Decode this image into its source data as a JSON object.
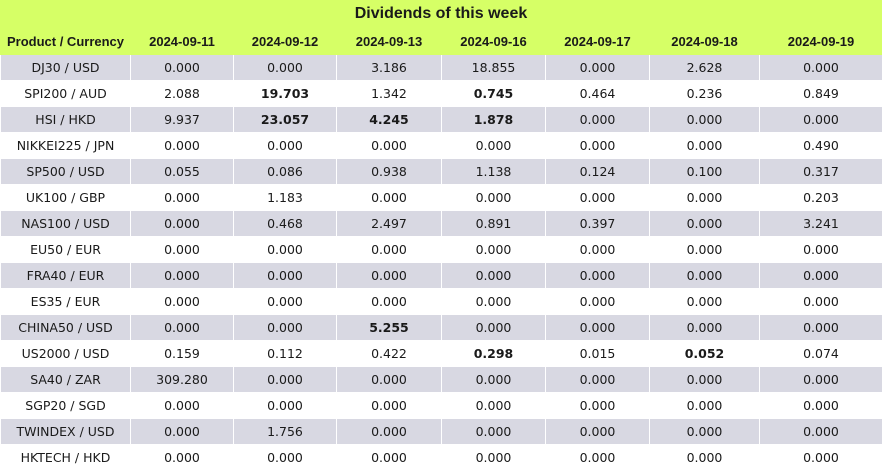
{
  "title": "Dividends of this week",
  "headers": [
    "Product / Currency",
    "2024-09-11",
    "2024-09-12",
    "2024-09-13",
    "2024-09-16",
    "2024-09-17",
    "2024-09-18",
    "2024-09-19"
  ],
  "rows": [
    {
      "product": "DJ30 / USD",
      "values": [
        "0.000",
        "0.000",
        "3.186",
        "18.855",
        "0.000",
        "2.628",
        "0.000"
      ],
      "bold": []
    },
    {
      "product": "SPI200 / AUD",
      "values": [
        "2.088",
        "19.703",
        "1.342",
        "0.745",
        "0.464",
        "0.236",
        "0.849"
      ],
      "bold": [
        1,
        3
      ]
    },
    {
      "product": "HSI / HKD",
      "values": [
        "9.937",
        "23.057",
        "4.245",
        "1.878",
        "0.000",
        "0.000",
        "0.000"
      ],
      "bold": [
        1,
        2,
        3
      ]
    },
    {
      "product": "NIKKEI225 / JPN",
      "values": [
        "0.000",
        "0.000",
        "0.000",
        "0.000",
        "0.000",
        "0.000",
        "0.490"
      ],
      "bold": []
    },
    {
      "product": "SP500 / USD",
      "values": [
        "0.055",
        "0.086",
        "0.938",
        "1.138",
        "0.124",
        "0.100",
        "0.317"
      ],
      "bold": []
    },
    {
      "product": "UK100 / GBP",
      "values": [
        "0.000",
        "1.183",
        "0.000",
        "0.000",
        "0.000",
        "0.000",
        "0.203"
      ],
      "bold": []
    },
    {
      "product": "NAS100 / USD",
      "values": [
        "0.000",
        "0.468",
        "2.497",
        "0.891",
        "0.397",
        "0.000",
        "3.241"
      ],
      "bold": []
    },
    {
      "product": "EU50 / EUR",
      "values": [
        "0.000",
        "0.000",
        "0.000",
        "0.000",
        "0.000",
        "0.000",
        "0.000"
      ],
      "bold": []
    },
    {
      "product": "FRA40 / EUR",
      "values": [
        "0.000",
        "0.000",
        "0.000",
        "0.000",
        "0.000",
        "0.000",
        "0.000"
      ],
      "bold": []
    },
    {
      "product": "ES35 / EUR",
      "values": [
        "0.000",
        "0.000",
        "0.000",
        "0.000",
        "0.000",
        "0.000",
        "0.000"
      ],
      "bold": []
    },
    {
      "product": "CHINA50 / USD",
      "values": [
        "0.000",
        "0.000",
        "5.255",
        "0.000",
        "0.000",
        "0.000",
        "0.000"
      ],
      "bold": [
        2
      ]
    },
    {
      "product": "US2000 / USD",
      "values": [
        "0.159",
        "0.112",
        "0.422",
        "0.298",
        "0.015",
        "0.052",
        "0.074"
      ],
      "bold": [
        3,
        5
      ]
    },
    {
      "product": "SA40 / ZAR",
      "values": [
        "309.280",
        "0.000",
        "0.000",
        "0.000",
        "0.000",
        "0.000",
        "0.000"
      ],
      "bold": []
    },
    {
      "product": "SGP20 / SGD",
      "values": [
        "0.000",
        "0.000",
        "0.000",
        "0.000",
        "0.000",
        "0.000",
        "0.000"
      ],
      "bold": []
    },
    {
      "product": "TWINDEX / USD",
      "values": [
        "0.000",
        "1.756",
        "0.000",
        "0.000",
        "0.000",
        "0.000",
        "0.000"
      ],
      "bold": []
    },
    {
      "product": "HKTECH / HKD",
      "values": [
        "0.000",
        "0.000",
        "0.000",
        "0.000",
        "0.000",
        "0.000",
        "0.000"
      ],
      "bold": []
    }
  ],
  "colors": {
    "header_bg": "#d6ff66",
    "row_gray": "#d8d8e2",
    "row_white": "#ffffff"
  }
}
